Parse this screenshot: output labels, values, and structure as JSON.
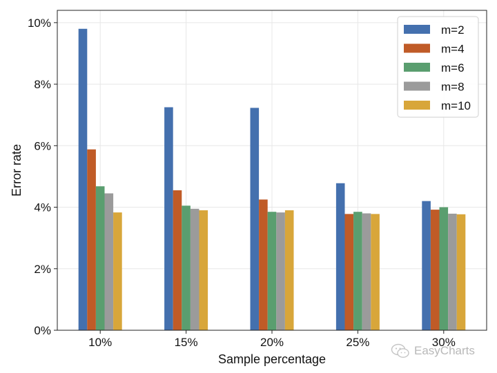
{
  "chart_data": {
    "type": "bar",
    "title": "",
    "xlabel": "Sample percentage",
    "ylabel": "Error rate",
    "categories": [
      "10%",
      "15%",
      "20%",
      "25%",
      "30%"
    ],
    "ylim": [
      0,
      10.4
    ],
    "yticks": [
      0,
      2,
      4,
      6,
      8,
      10
    ],
    "ytick_labels": [
      "0%",
      "2%",
      "4%",
      "6%",
      "8%",
      "10%"
    ],
    "grid": true,
    "legend_position": "top-right",
    "series": [
      {
        "name": "m=2",
        "color": "#4470ae",
        "values": [
          9.8,
          7.25,
          7.23,
          4.78,
          4.2
        ]
      },
      {
        "name": "m=4",
        "color": "#c05b27",
        "values": [
          5.88,
          4.55,
          4.25,
          3.78,
          3.92
        ]
      },
      {
        "name": "m=6",
        "color": "#5a9e6f",
        "values": [
          4.68,
          4.05,
          3.85,
          3.85,
          4.0
        ]
      },
      {
        "name": "m=8",
        "color": "#9b9b9b",
        "values": [
          4.45,
          3.95,
          3.83,
          3.8,
          3.79
        ]
      },
      {
        "name": "m=10",
        "color": "#d8a63a",
        "values": [
          3.83,
          3.9,
          3.9,
          3.78,
          3.77
        ]
      }
    ]
  },
  "watermark": {
    "text": "EasyCharts",
    "icon": "wechat-icon"
  }
}
